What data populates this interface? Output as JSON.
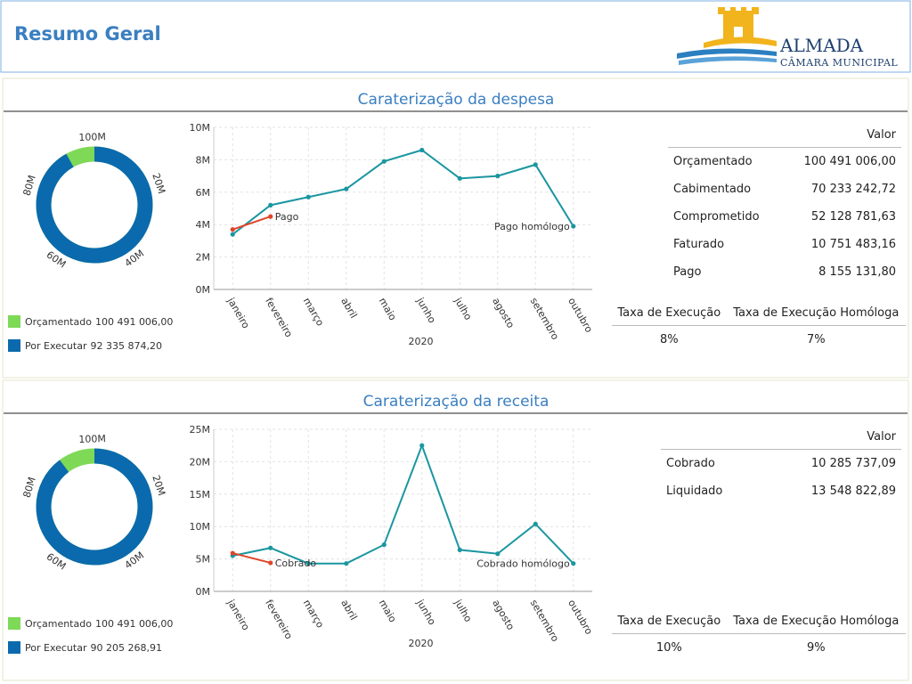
{
  "header": {
    "title": "Resumo Geral",
    "logo_name": "ALMADA",
    "logo_subtitle": "CÂMARA MUNICIPAL"
  },
  "sections": [
    {
      "title": "Caraterização da despesa",
      "values_table": {
        "header": "Valor",
        "rows": [
          [
            "Orçamentado",
            "100 491 006,00"
          ],
          [
            "Cabimentado",
            "70 233 242,72"
          ],
          [
            "Comprometido",
            "52 128 781,63"
          ],
          [
            "Faturado",
            "10 751 483,16"
          ],
          [
            "Pago",
            "8 155 131,80"
          ]
        ]
      },
      "rate_table": {
        "headers": [
          "Taxa de Execução",
          "Taxa de Execução Homóloga"
        ],
        "values": [
          "8%",
          "7%"
        ]
      }
    },
    {
      "title": "Caraterização da receita",
      "values_table": {
        "header": "Valor",
        "rows": [
          [
            "Cobrado",
            "10 285 737,09"
          ],
          [
            "Liquidado",
            "13 548 822,89"
          ]
        ]
      },
      "rate_table": {
        "headers": [
          "Taxa de Execução",
          "Taxa de Execução Homóloga"
        ],
        "values": [
          "10%",
          "9%"
        ]
      }
    }
  ],
  "chart_data": [
    {
      "type": "donut",
      "categories": [
        "Orçamentado",
        "Por Executar"
      ],
      "values": [
        100491006.0,
        92335874.2
      ],
      "value_labels": [
        "100 491 006,00",
        "92 335 874,20"
      ],
      "colors": [
        "#7ed957",
        "#0b6aad"
      ],
      "ylim": [
        0,
        100491006
      ],
      "yticks": [
        {
          "value": 20000000,
          "label": "20M"
        },
        {
          "value": 40000000,
          "label": "40M"
        },
        {
          "value": 60000000,
          "label": "60M"
        },
        {
          "value": 80000000,
          "label": "80M"
        },
        {
          "value": 100000000,
          "label": "100M"
        }
      ]
    },
    {
      "type": "line",
      "xlabel": "2020",
      "categories": [
        "janeiro",
        "fevereiro",
        "março",
        "abril",
        "maio",
        "junho",
        "julho",
        "agosto",
        "setembro",
        "outubro"
      ],
      "series": [
        {
          "name": "Pago",
          "color": "#e0452a",
          "values": [
            3700000,
            4500000,
            null,
            null,
            null,
            null,
            null,
            null,
            null,
            null
          ]
        },
        {
          "name": "Pago homólogo",
          "color": "#1a96a0",
          "values": [
            3400000,
            5200000,
            5700000,
            6200000,
            7900000,
            8600000,
            6850000,
            7000000,
            7700000,
            3900000
          ]
        }
      ],
      "ylim": [
        0,
        10000000
      ],
      "yticks": [
        {
          "value": 0,
          "label": "0M"
        },
        {
          "value": 2000000,
          "label": "2M"
        },
        {
          "value": 4000000,
          "label": "4M"
        },
        {
          "value": 6000000,
          "label": "6M"
        },
        {
          "value": 8000000,
          "label": "8M"
        },
        {
          "value": 10000000,
          "label": "10M"
        }
      ],
      "grid": true
    },
    {
      "type": "donut",
      "categories": [
        "Orçamentado",
        "Por Executar"
      ],
      "values": [
        100491006.0,
        90205268.91
      ],
      "value_labels": [
        "100 491 006,00",
        "90 205 268,91"
      ],
      "colors": [
        "#7ed957",
        "#0b6aad"
      ],
      "ylim": [
        0,
        100491006
      ],
      "yticks": [
        {
          "value": 20000000,
          "label": "20M"
        },
        {
          "value": 40000000,
          "label": "40M"
        },
        {
          "value": 60000000,
          "label": "60M"
        },
        {
          "value": 80000000,
          "label": "80M"
        },
        {
          "value": 100000000,
          "label": "100M"
        }
      ]
    },
    {
      "type": "line",
      "xlabel": "2020",
      "categories": [
        "janeiro",
        "fevereiro",
        "março",
        "abril",
        "maio",
        "junho",
        "julho",
        "agosto",
        "setembro",
        "outubro"
      ],
      "series": [
        {
          "name": "Cobrado",
          "color": "#e0452a",
          "values": [
            5900000,
            4400000,
            null,
            null,
            null,
            null,
            null,
            null,
            null,
            null
          ]
        },
        {
          "name": "Cobrado homólogo",
          "color": "#1a96a0",
          "values": [
            5500000,
            6700000,
            4300000,
            4300000,
            7200000,
            22500000,
            6400000,
            5800000,
            10400000,
            4300000
          ]
        }
      ],
      "ylim": [
        0,
        25000000
      ],
      "yticks": [
        {
          "value": 0,
          "label": "0M"
        },
        {
          "value": 5000000,
          "label": "5M"
        },
        {
          "value": 10000000,
          "label": "10M"
        },
        {
          "value": 15000000,
          "label": "15M"
        },
        {
          "value": 20000000,
          "label": "20M"
        },
        {
          "value": 25000000,
          "label": "25M"
        }
      ],
      "grid": true
    }
  ]
}
